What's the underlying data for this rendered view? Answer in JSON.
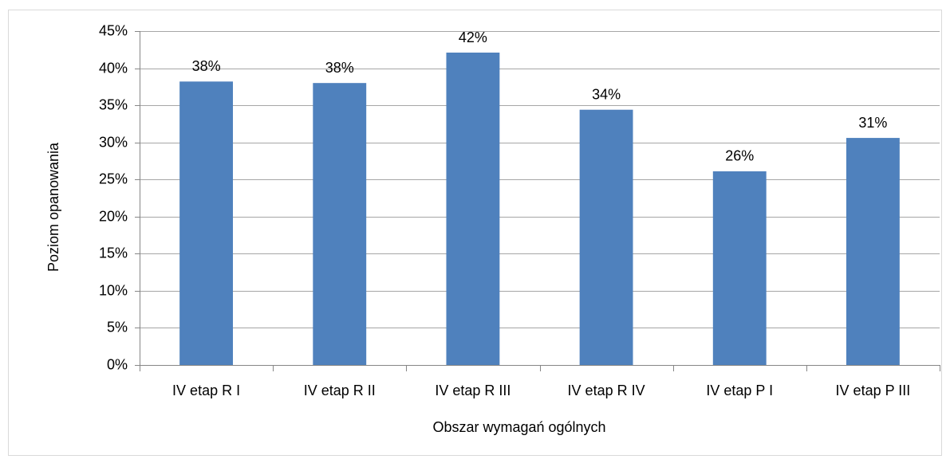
{
  "chart_data": {
    "type": "bar",
    "x_label": "Obszar wymagań ogólnych",
    "y_label": "Poziom opanowania",
    "categories": [
      "IV etap R I",
      "IV etap R II",
      "IV etap R III",
      "IV etap R IV",
      "IV etap P I",
      "IV etap P III"
    ],
    "values": [
      38.2,
      38.0,
      42.1,
      34.4,
      26.1,
      30.6
    ],
    "value_labels": [
      "38%",
      "38%",
      "42%",
      "34%",
      "26%",
      "31%"
    ],
    "color": "#4f81bd",
    "ylim": [
      0,
      45
    ],
    "yticks": [
      {
        "value": 0,
        "label": "0%"
      },
      {
        "value": 5,
        "label": "5%"
      },
      {
        "value": 10,
        "label": "10%"
      },
      {
        "value": 15,
        "label": "15%"
      },
      {
        "value": 20,
        "label": "20%"
      },
      {
        "value": 25,
        "label": "25%"
      },
      {
        "value": 30,
        "label": "30%"
      },
      {
        "value": 35,
        "label": "35%"
      },
      {
        "value": 40,
        "label": "40%"
      },
      {
        "value": 45,
        "label": "45%"
      }
    ],
    "grid": true
  }
}
